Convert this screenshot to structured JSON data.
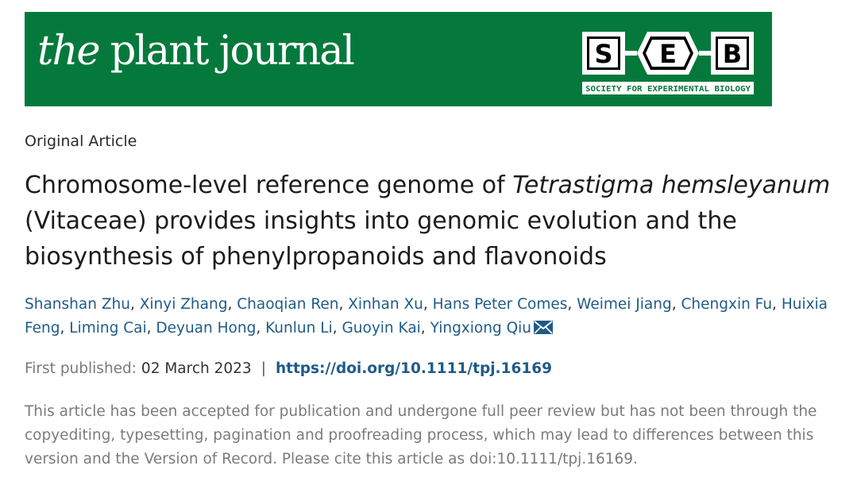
{
  "banner": {
    "journal_the": "the",
    "journal_rest": " plant journal",
    "seb_letters": [
      "S",
      "E",
      "B"
    ],
    "seb_tagline": "SOCIETY FOR EXPERIMENTAL BIOLOGY",
    "background_color": "#05793b"
  },
  "article": {
    "section": "Original Article",
    "title_part1": "Chromosome-level reference genome of ",
    "title_italic1": "Tetrastigma hemsleyanum",
    "title_part2": " (Vitaceae) provides insights into genomic evolution and the biosynthesis of phenylpropanoids and flavonoids",
    "authors": [
      "Shanshan Zhu",
      "Xinyi Zhang",
      "Chaoqian Ren",
      "Xinhan Xu",
      "Hans Peter Comes",
      "Weimei Jiang",
      "Chengxin Fu",
      "Huixia Feng",
      "Liming Cai",
      "Deyuan Hong",
      "Kunlun Li",
      "Guoyin Kai",
      "Yingxiong Qiu"
    ],
    "corresponding_icon": "envelope-icon",
    "first_published_label": "First published:",
    "first_published_date": "02 March 2023",
    "separator": "|",
    "doi_link": "https://doi.org/10.1111/tpj.16169",
    "notice": "This article has been accepted for publication and undergone full peer review but has not been through the copyediting, typesetting, pagination and proofreading process, which may lead to differences between this version and the Version of Record. Please cite this article as doi:10.1111/tpj.16169."
  },
  "colors": {
    "link": "#1f5b87",
    "muted": "#7b7b7b"
  }
}
